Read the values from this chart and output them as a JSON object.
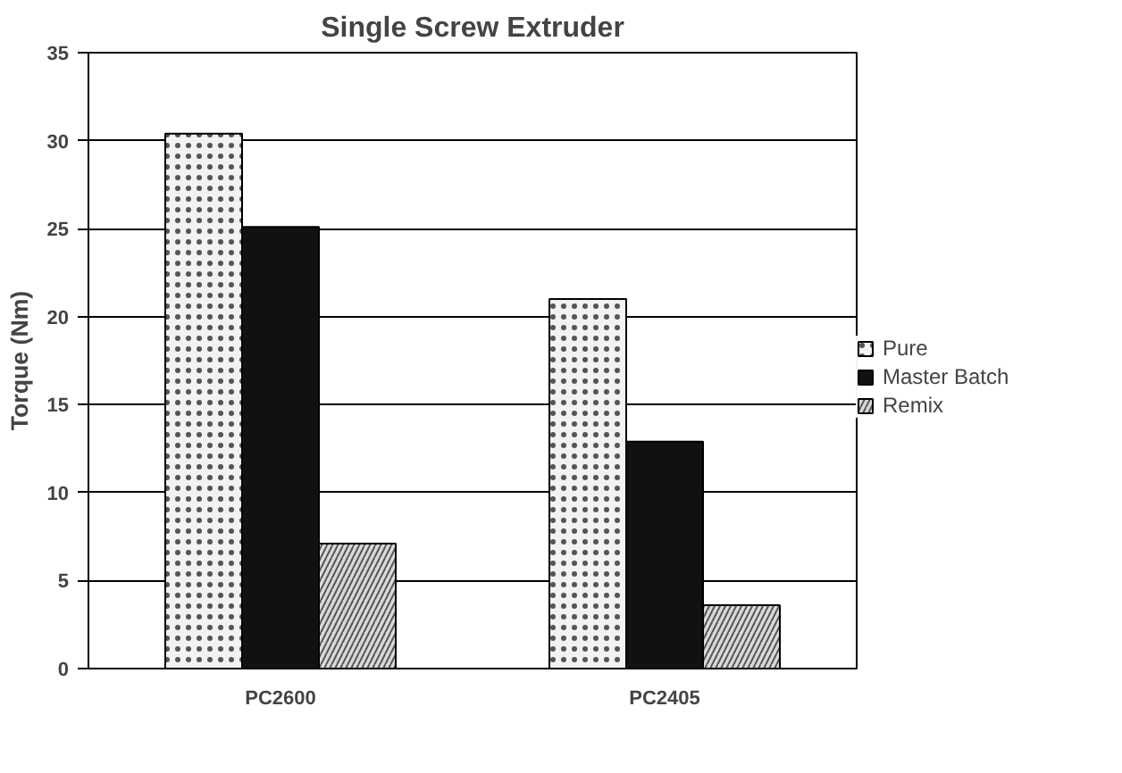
{
  "chart_data": {
    "type": "bar",
    "title": "Single Screw Extruder",
    "ylabel": "Torque (Nm)",
    "categories": [
      "PC2600",
      "PC2405"
    ],
    "series": [
      {
        "name": "Pure",
        "color": "#f2f2f2",
        "values": [
          30.4,
          21.0
        ]
      },
      {
        "name": "Master Batch",
        "color": "#111111",
        "values": [
          25.1,
          12.9
        ]
      },
      {
        "name": "Remix",
        "color": "#d9d9d9",
        "values": [
          7.1,
          3.6
        ]
      }
    ],
    "ylim": [
      0,
      35
    ],
    "yticks": [
      0,
      5,
      10,
      15,
      20,
      25,
      30,
      35
    ],
    "grid": "y",
    "legend": "right"
  }
}
